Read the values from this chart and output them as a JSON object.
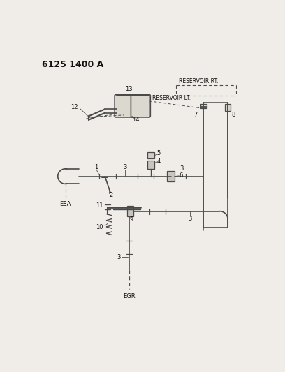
{
  "title": "6125 1400 A",
  "bg": "#f0ede8",
  "lc": "#4a4a4a",
  "tc": "#111111",
  "ESA": "ESA",
  "EGR": "EGR",
  "RESERVOIR_LT": "RESERVOIR LT.",
  "RESERVOIR_RT": "RESERVOIR RT."
}
